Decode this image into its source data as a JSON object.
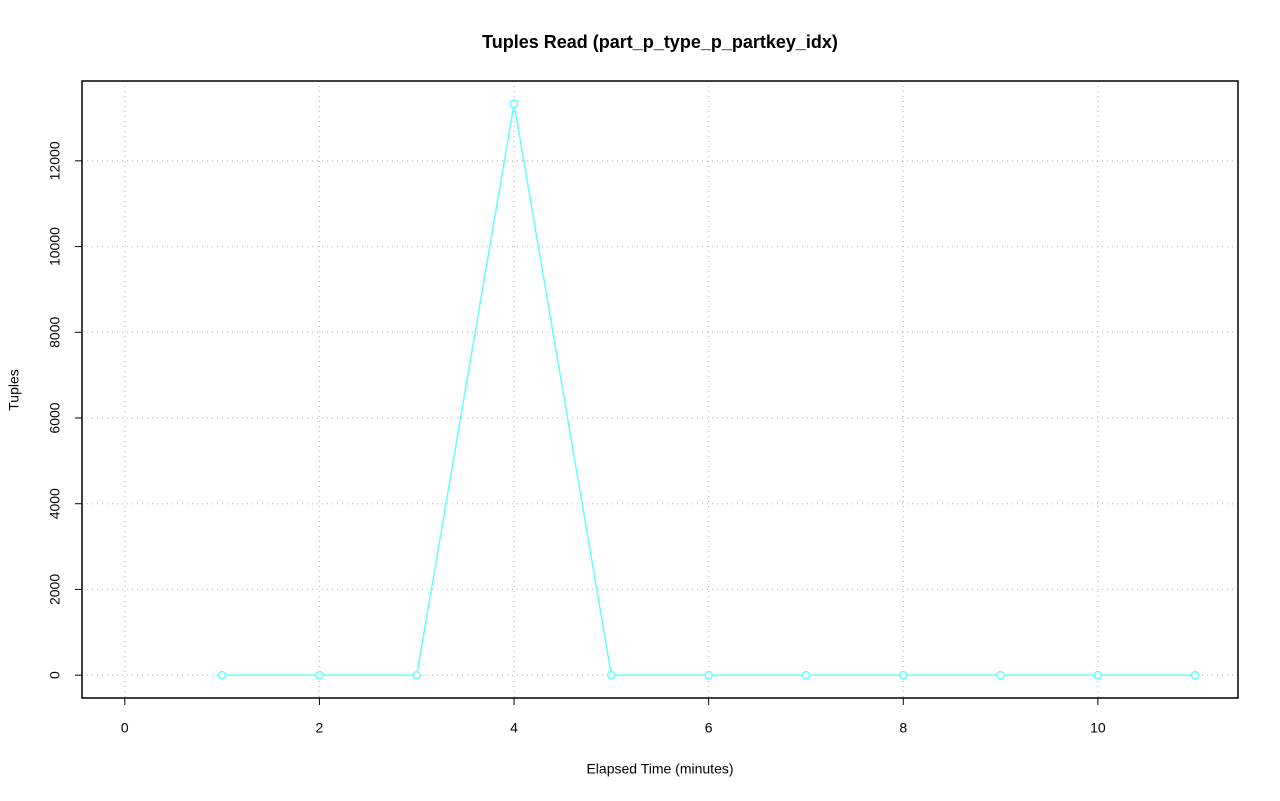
{
  "chart_data": {
    "type": "line",
    "title": "Tuples Read (part_p_type_p_partkey_idx)",
    "x_label": "Elapsed Time (minutes)",
    "y_label": "Tuples",
    "x": [
      1,
      2,
      3,
      4,
      5,
      6,
      7,
      8,
      9,
      10,
      11
    ],
    "series": [
      {
        "name": "Tuples",
        "color": "#66ffff",
        "values": [
          0,
          0,
          0,
          13330,
          0,
          0,
          0,
          0,
          0,
          0,
          0
        ]
      }
    ],
    "xlim": [
      -0.44,
      11.44
    ],
    "xticks": [
      0,
      2,
      4,
      6,
      8,
      10
    ],
    "ylim": [
      -533,
      13863
    ],
    "yticks": [
      0,
      2000,
      4000,
      6000,
      8000,
      10000,
      12000
    ],
    "grid": true
  }
}
